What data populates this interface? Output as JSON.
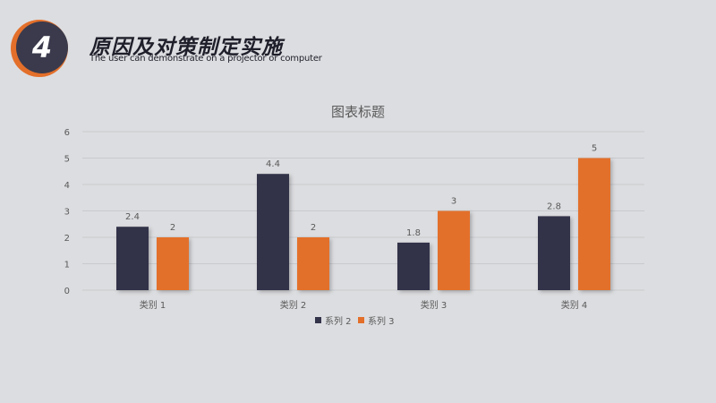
{
  "header": {
    "number": "4",
    "title": "原因及对策制定实施",
    "subtitle": "The user can demonstrate on a projector or computer"
  },
  "colors": {
    "accent": "#e36f2a",
    "dark": "#33334a",
    "grid": "#c8cacd",
    "text": "#595959"
  },
  "chart_data": {
    "type": "bar",
    "title": "图表标题",
    "categories": [
      "类别 1",
      "类别 2",
      "类别 3",
      "类别 4"
    ],
    "series": [
      {
        "name": "系列 2",
        "values": [
          2.4,
          4.4,
          1.8,
          2.8
        ],
        "labels": [
          "2.4",
          "4.4",
          "1.8",
          "2.8"
        ],
        "color": "#33334a"
      },
      {
        "name": "系列 3",
        "values": [
          2,
          2,
          3,
          5
        ],
        "labels": [
          "2",
          "2",
          "3",
          "5"
        ],
        "color": "#e36f2a"
      }
    ],
    "yticks": [
      "0",
      "1",
      "2",
      "3",
      "4",
      "5",
      "6"
    ],
    "ylim": [
      0,
      6
    ],
    "grid": true,
    "legend_position": "bottom",
    "xlabel": "",
    "ylabel": ""
  }
}
